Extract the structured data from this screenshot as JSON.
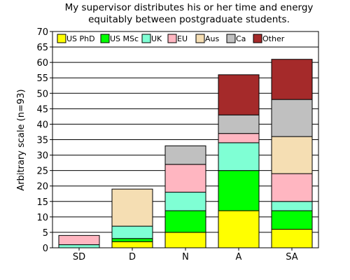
{
  "chart_data": {
    "type": "bar",
    "stacked": true,
    "title_lines": [
      "My supervisor distributes his or her time and energy",
      "equitably between postgraduate students."
    ],
    "xlabel": "",
    "ylabel": "Arbitrary scale (n=93)",
    "ylim": [
      0,
      70
    ],
    "yticks": [
      0,
      5,
      10,
      15,
      20,
      25,
      30,
      35,
      40,
      45,
      50,
      55,
      60,
      65,
      70
    ],
    "grid": true,
    "legend_position": "top",
    "categories": [
      "SD",
      "D",
      "N",
      "A",
      "SA"
    ],
    "series": [
      {
        "name": "US PhD",
        "color": "#ffff00",
        "values": [
          0,
          2,
          5,
          12,
          6
        ]
      },
      {
        "name": "US MSc",
        "color": "#00ff00",
        "values": [
          0,
          1,
          7,
          13,
          6
        ]
      },
      {
        "name": "UK",
        "color": "#7fffd4",
        "values": [
          1,
          4,
          6,
          9,
          3
        ]
      },
      {
        "name": "EU",
        "color": "#ffb6c1",
        "values": [
          3,
          0,
          9,
          3,
          9
        ]
      },
      {
        "name": "Aus",
        "color": "#f5deb3",
        "values": [
          0,
          12,
          0,
          0,
          12
        ]
      },
      {
        "name": "Ca",
        "color": "#c0c0c0",
        "values": [
          0,
          0,
          6,
          6,
          12
        ]
      },
      {
        "name": "Other",
        "color": "#a52a2a",
        "values": [
          0,
          0,
          0,
          13,
          13
        ]
      }
    ]
  }
}
